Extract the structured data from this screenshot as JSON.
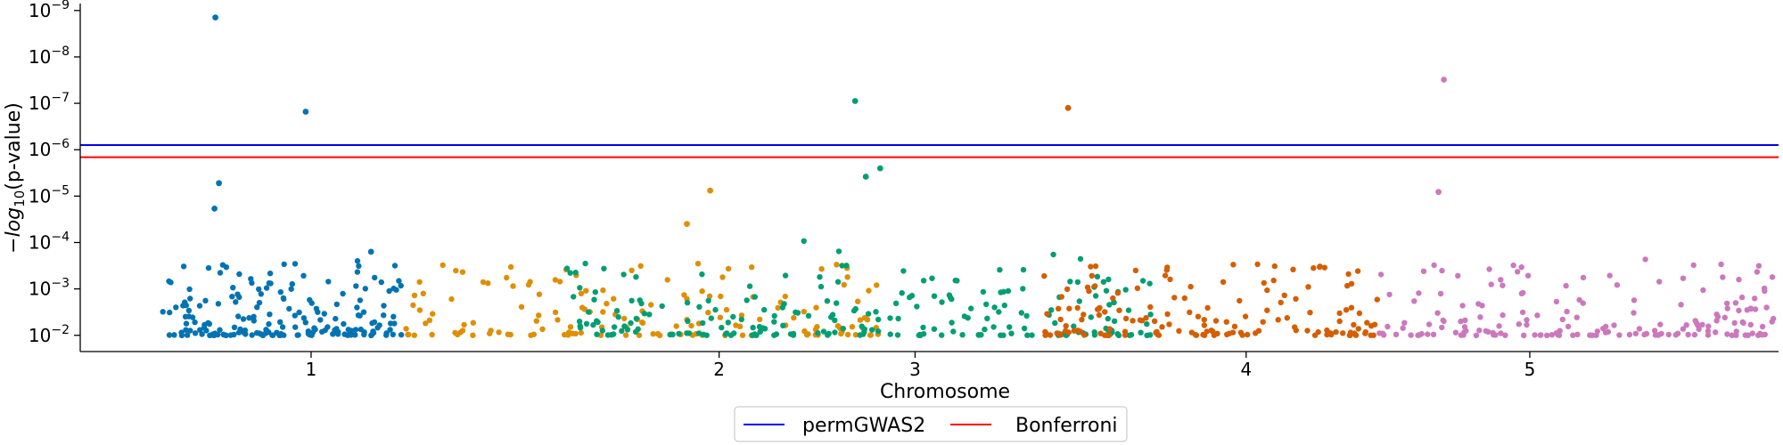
{
  "chart_data": {
    "type": "scatter",
    "title": "",
    "xlabel": "Chromosome",
    "ylabel_prefix": "−",
    "ylabel_log": "log",
    "ylabel_sub": "10",
    "ylabel_suffix": "(p-value)",
    "x_ticks": [
      {
        "label": "1",
        "pos": 166
      },
      {
        "label": "2",
        "pos": 622
      },
      {
        "label": "3",
        "pos": 841
      },
      {
        "label": "4",
        "pos": 1211
      },
      {
        "label": "5",
        "pos": 1528
      }
    ],
    "xlim": [
      -92,
      1806
    ],
    "y_scale": "log",
    "y_ticks": [
      {
        "exp": -9,
        "value": 9
      },
      {
        "exp": -8,
        "value": 8
      },
      {
        "exp": -7,
        "value": 7
      },
      {
        "exp": -6,
        "value": 6
      },
      {
        "exp": -5,
        "value": 5
      },
      {
        "exp": -4,
        "value": 4
      },
      {
        "exp": -3,
        "value": 3
      },
      {
        "exp": -2,
        "value": 2
      }
    ],
    "ylim": [
      1.65,
      9.15
    ],
    "grid": false,
    "legend_position": "bottom-center",
    "thresholds": [
      {
        "name": "permGWAS2",
        "value": 6.1,
        "color": "#0000ee"
      },
      {
        "name": "Bonferroni",
        "value": 5.84,
        "color": "#ff0000"
      }
    ],
    "series": [
      {
        "chromosome": "1",
        "color": "#0173b2",
        "segment": [
          0,
          270
        ],
        "n_points": 190,
        "highlights": [
          {
            "x": 59,
            "y": 8.85
          },
          {
            "x": 160,
            "y": 6.82
          },
          {
            "x": 63,
            "y": 5.28
          },
          {
            "x": 58,
            "y": 4.73
          },
          {
            "x": 233,
            "y": 3.8
          }
        ]
      },
      {
        "chromosome": "2",
        "color": "#de8f05",
        "segment": [
          270,
          800
        ],
        "n_points": 150,
        "highlights": [
          {
            "x": 612,
            "y": 5.12
          },
          {
            "x": 586,
            "y": 4.4
          }
        ]
      },
      {
        "chromosome": "3",
        "color": "#029e73",
        "segment": [
          450,
          1105
        ],
        "n_points": 230,
        "highlights": [
          {
            "x": 774,
            "y": 7.05
          },
          {
            "x": 802,
            "y": 5.6
          },
          {
            "x": 786,
            "y": 5.42
          }
        ]
      },
      {
        "chromosome": "4",
        "color": "#d55e00",
        "segment": [
          985,
          1358
        ],
        "n_points": 155,
        "highlights": [
          {
            "x": 1012,
            "y": 6.9
          }
        ]
      },
      {
        "chromosome": "5",
        "color": "#cc78bc",
        "segment": [
          1358,
          1806
        ],
        "n_points": 175,
        "highlights": [
          {
            "x": 1432,
            "y": 7.51
          },
          {
            "x": 1426,
            "y": 5.09
          }
        ]
      }
    ]
  }
}
